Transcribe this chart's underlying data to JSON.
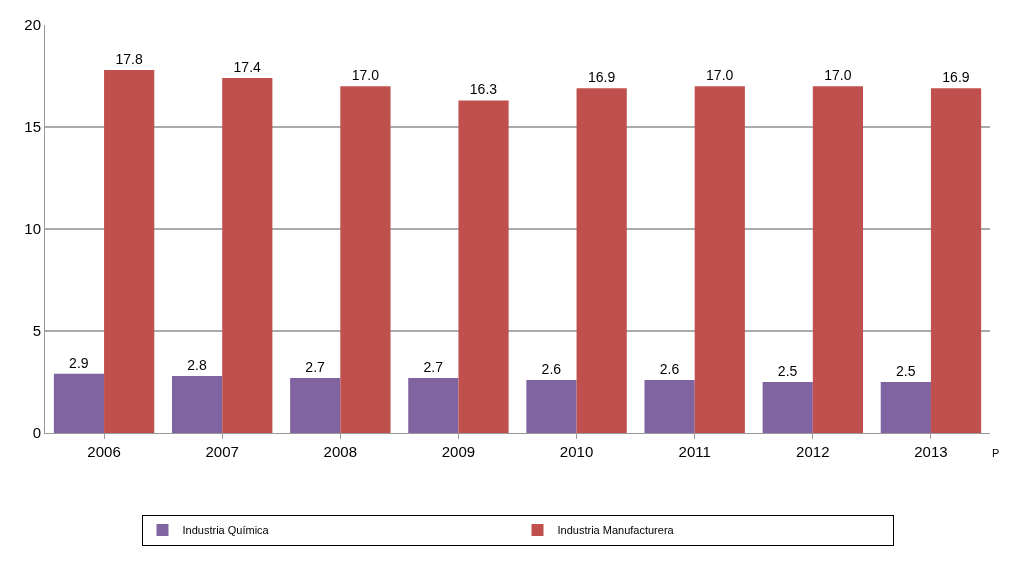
{
  "chart_data": {
    "type": "bar",
    "categories": [
      "2006",
      "2007",
      "2008",
      "2009",
      "2010",
      "2011",
      "2012",
      "2013"
    ],
    "series": [
      {
        "name": "Industria Química",
        "color": "#8064a2",
        "values": [
          2.9,
          2.8,
          2.7,
          2.7,
          2.6,
          2.6,
          2.5,
          2.5
        ],
        "value_labels": [
          "2.9",
          "2.8",
          "2.7",
          "2.7",
          "2.6",
          "2.6",
          "2.5",
          "2.5"
        ]
      },
      {
        "name": "Industria Manufacturera",
        "color": "#c0504d",
        "values": [
          17.8,
          17.4,
          17.0,
          16.3,
          16.9,
          17.0,
          17.0,
          16.9
        ],
        "value_labels": [
          "17.8",
          "17.4",
          "17.0",
          "16.3",
          "16.9",
          "17.0",
          "17.0",
          "16.9"
        ]
      }
    ],
    "ylim": [
      0,
      20
    ],
    "yticks": [
      0,
      5,
      10,
      15,
      20
    ],
    "grid": "y",
    "legend": "bottom",
    "annotations": [
      "P"
    ]
  }
}
